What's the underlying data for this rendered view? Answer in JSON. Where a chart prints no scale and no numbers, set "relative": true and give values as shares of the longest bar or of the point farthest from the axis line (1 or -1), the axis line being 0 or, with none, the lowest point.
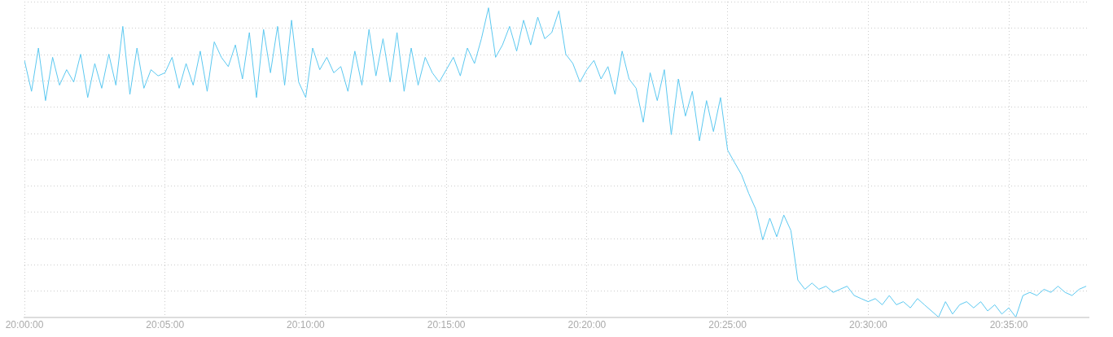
{
  "chart_data": {
    "type": "line",
    "relative": true,
    "grid": true,
    "marker": "none",
    "line_style": "solid",
    "xlim": [
      20,
      20.6306
    ],
    "xticks": [
      {
        "value": 20,
        "label": "20:00:00"
      },
      {
        "value": 20.083333,
        "label": "20:05:00"
      },
      {
        "value": 20.166667,
        "label": "20:10:00"
      },
      {
        "value": 20.25,
        "label": "20:15:00"
      },
      {
        "value": 20.333333,
        "label": "20:20:00"
      },
      {
        "value": 20.416667,
        "label": "20:25:00"
      },
      {
        "value": 20.5,
        "label": "20:30:00"
      },
      {
        "value": 20.583333,
        "label": "20:35:00"
      }
    ],
    "x": [
      20,
      20.0042,
      20.0083,
      20.0125,
      20.0167,
      20.0208,
      20.025,
      20.0292,
      20.0333,
      20.0375,
      20.0417,
      20.0458,
      20.05,
      20.0542,
      20.0583,
      20.0625,
      20.0667,
      20.0708,
      20.075,
      20.0792,
      20.0833,
      20.0875,
      20.0917,
      20.0958,
      20.1,
      20.1042,
      20.1083,
      20.1125,
      20.1167,
      20.1208,
      20.125,
      20.1292,
      20.1333,
      20.1375,
      20.1417,
      20.1458,
      20.15,
      20.1542,
      20.1583,
      20.1625,
      20.1667,
      20.1708,
      20.175,
      20.1792,
      20.1833,
      20.1875,
      20.1917,
      20.1958,
      20.2,
      20.2042,
      20.2083,
      20.2125,
      20.2167,
      20.2208,
      20.225,
      20.2292,
      20.2333,
      20.2375,
      20.2417,
      20.2458,
      20.25,
      20.2542,
      20.2583,
      20.2625,
      20.2667,
      20.2708,
      20.275,
      20.2792,
      20.2833,
      20.2875,
      20.2917,
      20.2958,
      20.3,
      20.3042,
      20.3083,
      20.3125,
      20.3167,
      20.3208,
      20.325,
      20.3292,
      20.3333,
      20.3375,
      20.3417,
      20.3458,
      20.35,
      20.3542,
      20.3583,
      20.3625,
      20.3667,
      20.3708,
      20.375,
      20.3792,
      20.3833,
      20.3875,
      20.3917,
      20.3958,
      20.4,
      20.4042,
      20.4083,
      20.4125,
      20.4167,
      20.4208,
      20.425,
      20.4292,
      20.4333,
      20.4375,
      20.4417,
      20.4458,
      20.45,
      20.4542,
      20.4583,
      20.4625,
      20.4667,
      20.4708,
      20.475,
      20.4792,
      20.4833,
      20.4875,
      20.4917,
      20.4958,
      20.5,
      20.5042,
      20.5083,
      20.5125,
      20.5167,
      20.5208,
      20.525,
      20.5292,
      20.5333,
      20.5375,
      20.5417,
      20.5458,
      20.55,
      20.5542,
      20.5583,
      20.5625,
      20.5667,
      20.5708,
      20.575,
      20.5792,
      20.5833,
      20.5875,
      20.5917,
      20.5958,
      20.6,
      20.6042,
      20.6083,
      20.6125,
      20.6167,
      20.6208,
      20.625,
      20.6292
    ],
    "series": [
      {
        "color": "#5bc8f0",
        "values": [
          0.83,
          0.73,
          0.87,
          0.7,
          0.84,
          0.75,
          0.8,
          0.76,
          0.85,
          0.71,
          0.82,
          0.74,
          0.85,
          0.75,
          0.94,
          0.72,
          0.87,
          0.74,
          0.8,
          0.78,
          0.79,
          0.84,
          0.74,
          0.82,
          0.75,
          0.86,
          0.73,
          0.89,
          0.84,
          0.81,
          0.88,
          0.77,
          0.92,
          0.71,
          0.93,
          0.79,
          0.94,
          0.75,
          0.96,
          0.76,
          0.71,
          0.87,
          0.8,
          0.84,
          0.79,
          0.81,
          0.73,
          0.86,
          0.75,
          0.93,
          0.78,
          0.9,
          0.76,
          0.92,
          0.73,
          0.87,
          0.75,
          0.84,
          0.79,
          0.76,
          0.8,
          0.84,
          0.78,
          0.87,
          0.82,
          0.9,
          1.0,
          0.84,
          0.88,
          0.94,
          0.86,
          0.96,
          0.88,
          0.97,
          0.9,
          0.92,
          0.99,
          0.85,
          0.82,
          0.76,
          0.8,
          0.83,
          0.77,
          0.81,
          0.72,
          0.86,
          0.77,
          0.74,
          0.63,
          0.79,
          0.7,
          0.8,
          0.59,
          0.77,
          0.65,
          0.73,
          0.57,
          0.7,
          0.6,
          0.71,
          0.54,
          0.5,
          0.46,
          0.4,
          0.35,
          0.25,
          0.32,
          0.26,
          0.33,
          0.28,
          0.12,
          0.09,
          0.11,
          0.09,
          0.1,
          0.08,
          0.09,
          0.1,
          0.07,
          0.06,
          0.05,
          0.06,
          0.04,
          0.07,
          0.04,
          0.05,
          0.03,
          0.06,
          0.04,
          0.02,
          0.0,
          0.05,
          0.01,
          0.04,
          0.05,
          0.03,
          0.05,
          0.02,
          0.04,
          0.01,
          0.03,
          0.0,
          0.07,
          0.08,
          0.07,
          0.09,
          0.08,
          0.1,
          0.08,
          0.07,
          0.09,
          0.1
        ]
      }
    ]
  }
}
